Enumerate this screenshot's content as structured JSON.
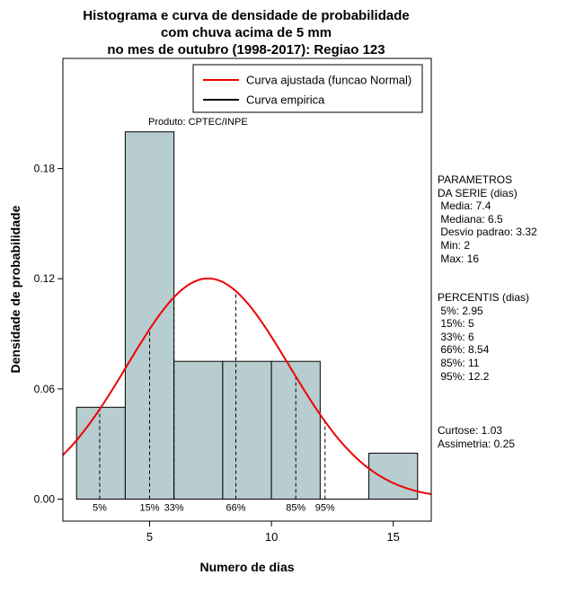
{
  "title": {
    "line1": "Histograma e curva de densidade de probabilidade",
    "line2": "com chuva acima de 5 mm",
    "line3": "no mes de outubro (1998-2017): Regiao 123"
  },
  "annotation": "Produto: CPTEC/INPE",
  "axes": {
    "x_label": "Numero de dias",
    "y_label": "Densidade de probabilidade"
  },
  "legend": {
    "items": [
      {
        "label": "Curva ajustada (funcao Normal)",
        "color": "#ee0000"
      },
      {
        "label": "Curva empirica",
        "color": "#000000"
      }
    ]
  },
  "stats_panel": {
    "block1": [
      "PARAMETROS",
      "DA SERIE (dias)",
      " Media: 7.4",
      " Mediana: 6.5",
      " Desvio padrao: 3.32",
      " Min: 2",
      " Max: 16"
    ],
    "block2": [
      "PERCENTIS (dias)",
      " 5%: 2.95",
      " 15%: 5",
      " 33%: 6",
      " 66%: 8.54",
      " 85%: 11",
      " 95%: 12.2"
    ],
    "block3": [
      "Curtose: 1.03",
      "Assimetria: 0.25"
    ]
  },
  "chart_data": {
    "type": "bar",
    "subtype": "histogram-with-fitted-normal-density",
    "title": "Histograma e curva de densidade de probabilidade com chuva acima de 5 mm no mes de outubro (1998-2017): Regiao 123",
    "xlabel": "Numero de dias",
    "ylabel": "Densidade de probabilidade",
    "xlim": [
      1.44,
      16.56
    ],
    "ylim": [
      -0.012,
      0.24
    ],
    "x_ticks": [
      5,
      10,
      15
    ],
    "y_ticks": [
      0.0,
      0.06,
      0.12,
      0.18
    ],
    "grid": false,
    "legend_position": "top-right-inside",
    "histogram": {
      "breaks": [
        2,
        4,
        6,
        8,
        10,
        12,
        14,
        16
      ],
      "densities": [
        0.05,
        0.2,
        0.075,
        0.075,
        0.075,
        0,
        0.025
      ],
      "fill": "#b8cdd0",
      "stroke": "#000000"
    },
    "normal_curve": {
      "mean": 7.4,
      "sd": 3.32,
      "color": "#ee0000"
    },
    "percentile_lines": [
      {
        "label": "5%",
        "x": 2.95
      },
      {
        "label": "15%",
        "x": 5
      },
      {
        "label": "33%",
        "x": 6
      },
      {
        "label": "66%",
        "x": 8.54
      },
      {
        "label": "85%",
        "x": 11
      },
      {
        "label": "95%",
        "x": 12.2
      }
    ],
    "stats": {
      "media": 7.4,
      "mediana": 6.5,
      "desvio_padrao": 3.32,
      "min": 2,
      "max": 16,
      "curtose": 1.03,
      "assimetria": 0.25
    }
  }
}
